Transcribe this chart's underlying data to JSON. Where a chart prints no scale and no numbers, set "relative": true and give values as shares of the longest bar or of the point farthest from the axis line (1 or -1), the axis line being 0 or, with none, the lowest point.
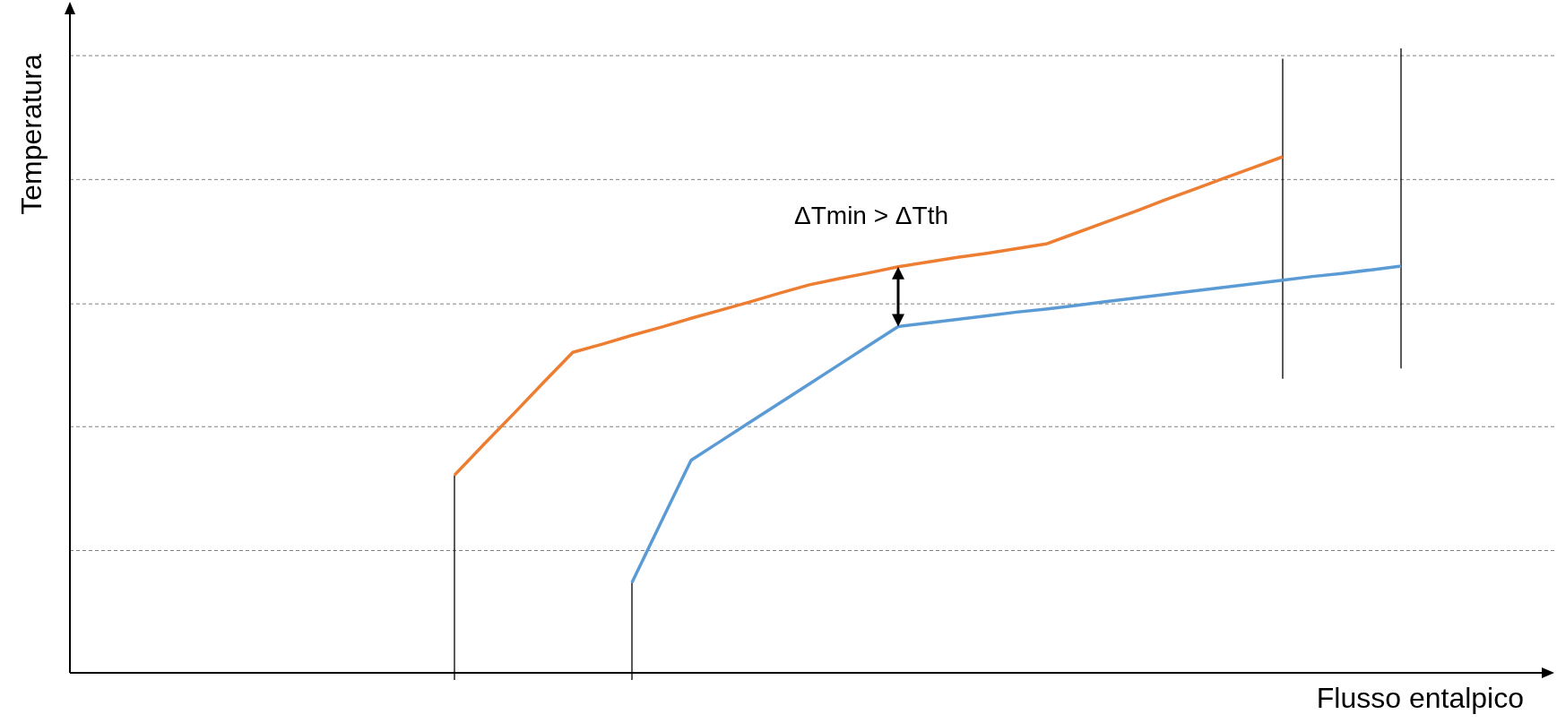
{
  "chart_data": {
    "type": "line",
    "relative": true,
    "xlabel": "Flusso entalpico",
    "ylabel": "Temperatura",
    "marker": "none",
    "line_style": "solid",
    "categories": [
      null,
      null,
      null,
      null,
      null,
      null,
      null,
      null,
      null,
      null,
      null,
      null,
      null,
      null,
      null,
      null,
      null,
      null,
      null,
      null,
      null,
      null,
      null,
      null,
      null,
      null,
      null,
      null,
      null,
      null,
      null,
      null,
      null,
      null,
      null,
      null,
      null,
      null,
      null,
      null,
      null,
      null,
      null,
      null,
      null,
      null,
      null,
      null,
      null,
      null,
      null
    ],
    "series": [
      {
        "color": "#ed7d31",
        "values": [
          null,
          null,
          null,
          null,
          null,
          null,
          null,
          null,
          null,
          null,
          null,
          null,
          null,
          0.383,
          0.443,
          0.502,
          0.562,
          0.621,
          0.637,
          0.654,
          0.67,
          0.687,
          0.703,
          0.719,
          0.736,
          0.752,
          0.764,
          0.775,
          0.787,
          0.796,
          0.805,
          0.813,
          0.822,
          0.831,
          0.852,
          0.873,
          0.894,
          0.916,
          0.937,
          0.958,
          0.979,
          1,
          null,
          null,
          null,
          null,
          null,
          null,
          null,
          null,
          null
        ]
      },
      {
        "color": "#5b9bd5",
        "values": [
          null,
          null,
          null,
          null,
          null,
          null,
          null,
          null,
          null,
          null,
          null,
          null,
          null,
          null,
          null,
          null,
          null,
          null,
          null,
          0.175,
          0.294,
          0.412,
          0.449,
          0.486,
          0.523,
          0.56,
          0.597,
          0.634,
          0.671,
          0.678,
          0.685,
          0.692,
          0.699,
          0.705,
          0.712,
          0.719,
          0.726,
          0.733,
          0.74,
          0.747,
          0.754,
          0.761,
          0.768,
          0.774,
          0.781,
          0.788,
          null,
          null,
          null,
          null,
          null
        ]
      }
    ],
    "ref_lines": [
      {
        "axis": "y",
        "value": 0.237,
        "color": "#808080",
        "line_style": "dashed"
      },
      {
        "axis": "y",
        "value": 0.477,
        "color": "#808080",
        "line_style": "dashed"
      },
      {
        "axis": "y",
        "value": 0.715,
        "color": "#808080",
        "line_style": "dashed"
      },
      {
        "axis": "y",
        "value": 0.956,
        "color": "#808080",
        "line_style": "dashed"
      },
      {
        "axis": "y",
        "value": 1.196,
        "color": "#808080",
        "line_style": "dashed"
      }
    ],
    "annotations": [
      "ΔTmin > ΔTth"
    ]
  }
}
